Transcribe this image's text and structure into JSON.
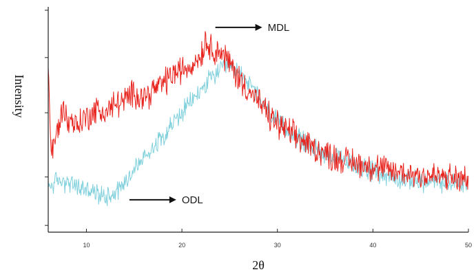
{
  "chart_data": {
    "type": "line",
    "title": "",
    "xlabel": "2θ",
    "ylabel": "Intensity",
    "xlim": [
      6,
      50
    ],
    "ylim": [
      0,
      1
    ],
    "xticks": [
      10,
      20,
      30,
      40,
      50
    ],
    "xtick_labels": [
      "10",
      "20",
      "30",
      "40",
      "50"
    ],
    "yticks": [
      0.03,
      0.245,
      0.53,
      0.775,
      0.985
    ],
    "grid": false,
    "legend": "none",
    "series": [
      {
        "key": "odl",
        "color": "#7fd0dc",
        "noise": 0.035,
        "x": [
          6,
          7,
          8,
          9,
          10,
          11,
          12,
          13,
          14,
          15,
          16,
          17,
          18,
          19,
          20,
          21,
          22,
          23,
          24,
          25,
          26,
          27,
          28,
          29,
          30,
          32,
          34,
          36,
          38,
          40,
          42,
          44,
          46,
          48,
          50
        ],
        "y": [
          0.2,
          0.23,
          0.22,
          0.2,
          0.19,
          0.17,
          0.16,
          0.18,
          0.22,
          0.28,
          0.33,
          0.38,
          0.43,
          0.48,
          0.53,
          0.58,
          0.63,
          0.68,
          0.72,
          0.73,
          0.71,
          0.66,
          0.6,
          0.54,
          0.49,
          0.42,
          0.37,
          0.33,
          0.3,
          0.27,
          0.24,
          0.23,
          0.22,
          0.22,
          0.22
        ]
      },
      {
        "key": "mdl",
        "color": "#e8221c",
        "noise": 0.05,
        "x": [
          6,
          6.3,
          6.7,
          7.5,
          8,
          9,
          10,
          11,
          12,
          13,
          14,
          15,
          16,
          17,
          18,
          19,
          20,
          21,
          22,
          22.5,
          23,
          24,
          25,
          26,
          27,
          28,
          29,
          30,
          32,
          34,
          36,
          38,
          40,
          42,
          44,
          46,
          48,
          50
        ],
        "y": [
          0.75,
          0.35,
          0.4,
          0.55,
          0.5,
          0.48,
          0.51,
          0.54,
          0.53,
          0.57,
          0.58,
          0.62,
          0.6,
          0.63,
          0.66,
          0.7,
          0.72,
          0.74,
          0.79,
          0.85,
          0.82,
          0.8,
          0.75,
          0.68,
          0.63,
          0.58,
          0.52,
          0.48,
          0.42,
          0.37,
          0.33,
          0.31,
          0.29,
          0.27,
          0.26,
          0.25,
          0.24,
          0.23
        ]
      }
    ],
    "annotations": [
      {
        "text": "MDL",
        "target_series": "mdl",
        "x": 23.5,
        "y": 0.985
      },
      {
        "text": "ODL",
        "target_series": "odl",
        "x": 14.5,
        "y": 0.22
      }
    ]
  }
}
